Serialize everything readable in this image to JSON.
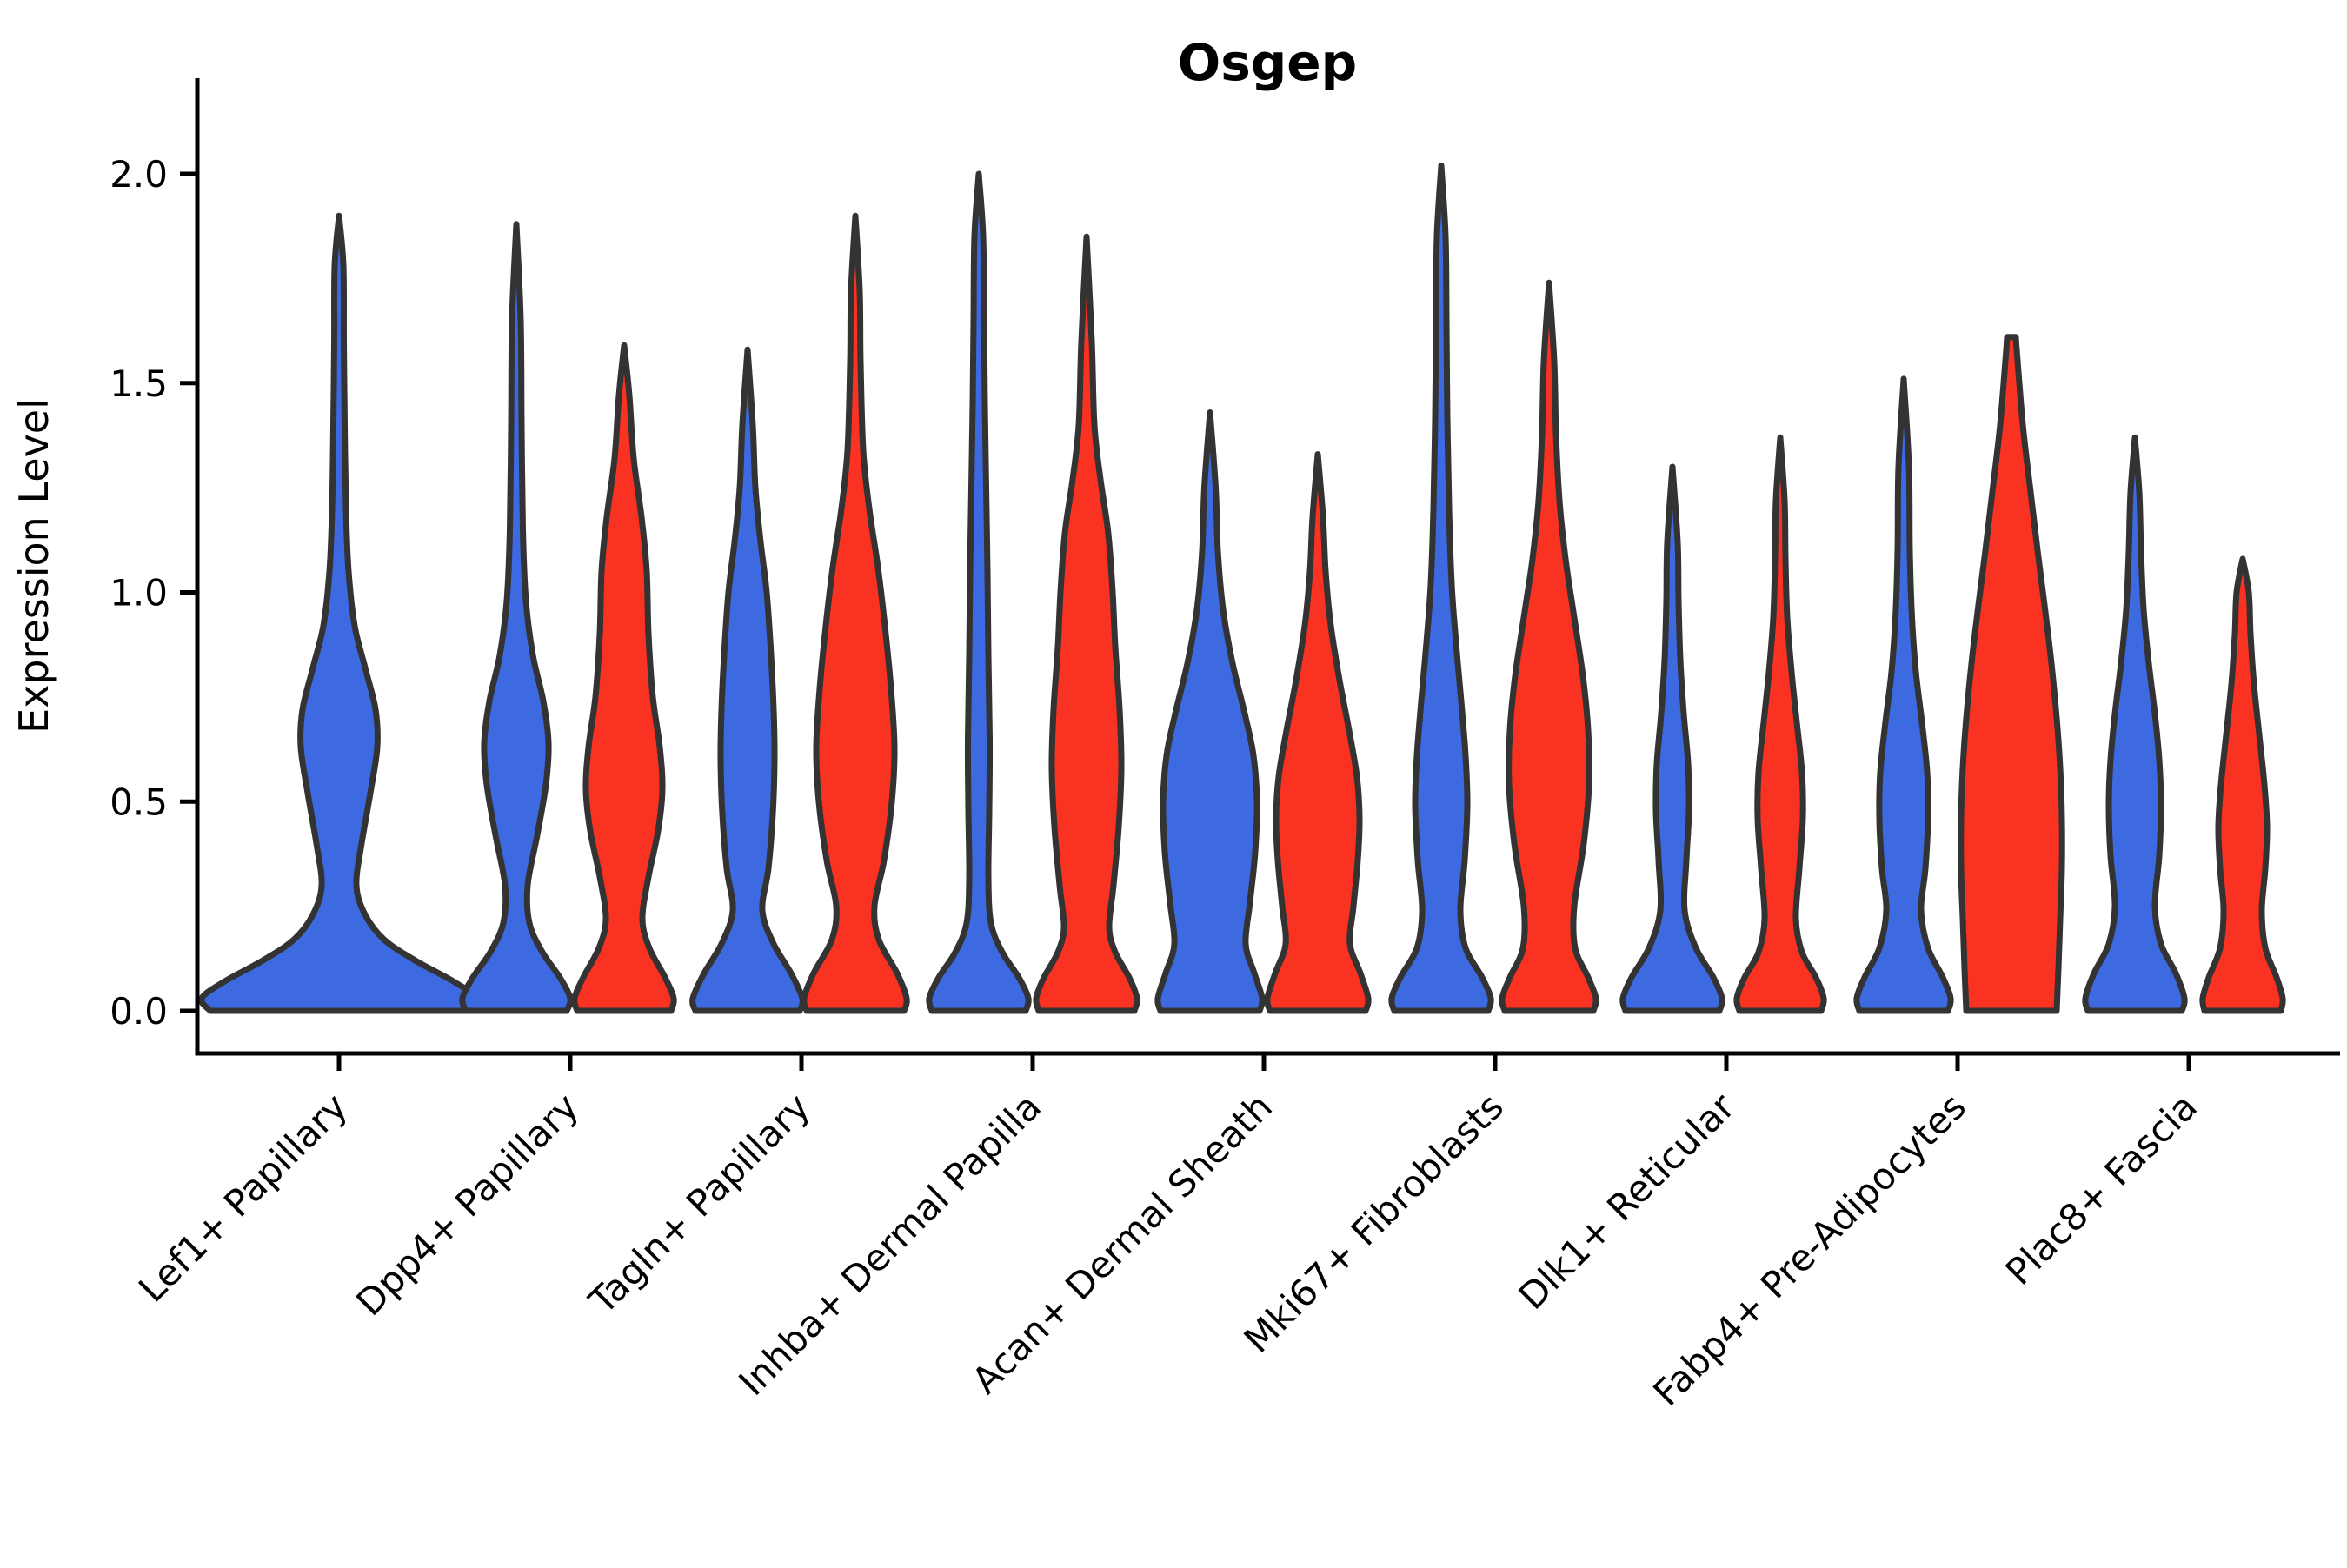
{
  "title": "Osgep",
  "chart_data": {
    "type": "violin",
    "title": "Osgep",
    "ylabel": "Expression Level",
    "xlabel": "",
    "ylim": [
      -0.1,
      2.16
    ],
    "yticks": [
      "0.0",
      "0.5",
      "1.0",
      "1.5",
      "2.0"
    ],
    "ytick_values": [
      0,
      0.5,
      1.0,
      1.5,
      2.0
    ],
    "grid": false,
    "legend_position": "none",
    "background_color": "#ffffff",
    "edge_color": "#333333",
    "axis_color": "#000000",
    "categories": [
      "Lef1+ Papillary",
      "Dpp4+ Papillary",
      "Tagln+ Papillary",
      "Inhba+ Dermal Papilla",
      "Acan+ Dermal Sheath",
      "Mki67+ Fibroblasts",
      "Dlk1+ Reticular",
      "Fabp4+ Pre-Adipocytes",
      "Plac8+ Fascia"
    ],
    "series": [
      {
        "name": "group-blue",
        "color": "#3E6AE1"
      },
      {
        "name": "group-red",
        "color": "#F93222"
      }
    ],
    "violins": [
      {
        "category_index": 0,
        "category": "Lef1+ Papillary",
        "series": 0,
        "position": "center",
        "max_expression": 1.9,
        "profile": [
          [
            0,
            148
          ],
          [
            0.03,
            158
          ],
          [
            0.07,
            132
          ],
          [
            0.12,
            88
          ],
          [
            0.17,
            52
          ],
          [
            0.23,
            30
          ],
          [
            0.3,
            20
          ],
          [
            0.4,
            26
          ],
          [
            0.52,
            36
          ],
          [
            0.63,
            44
          ],
          [
            0.72,
            42
          ],
          [
            0.82,
            30
          ],
          [
            0.92,
            18
          ],
          [
            1.05,
            11
          ],
          [
            1.2,
            8
          ],
          [
            1.4,
            6.5
          ],
          [
            1.6,
            5.5
          ],
          [
            1.78,
            5
          ],
          [
            1.9,
            0
          ]
        ]
      },
      {
        "category_index": 1,
        "category": "Dpp4+ Papillary",
        "series": 0,
        "position": "left",
        "max_expression": 1.88,
        "profile": [
          [
            0,
            58
          ],
          [
            0.03,
            62
          ],
          [
            0.08,
            50
          ],
          [
            0.14,
            30
          ],
          [
            0.21,
            15
          ],
          [
            0.3,
            13
          ],
          [
            0.42,
            24
          ],
          [
            0.54,
            34
          ],
          [
            0.64,
            37
          ],
          [
            0.74,
            31
          ],
          [
            0.85,
            19
          ],
          [
            0.98,
            11
          ],
          [
            1.15,
            7.5
          ],
          [
            1.4,
            6
          ],
          [
            1.65,
            5
          ],
          [
            1.88,
            0
          ]
        ]
      },
      {
        "category_index": 1,
        "category": "Dpp4+ Papillary",
        "series": 1,
        "position": "right",
        "max_expression": 1.59,
        "profile": [
          [
            0,
            54
          ],
          [
            0.03,
            57
          ],
          [
            0.08,
            47
          ],
          [
            0.15,
            29
          ],
          [
            0.22,
            21
          ],
          [
            0.32,
            28
          ],
          [
            0.43,
            39
          ],
          [
            0.53,
            44
          ],
          [
            0.63,
            41
          ],
          [
            0.75,
            33
          ],
          [
            0.9,
            28
          ],
          [
            1.05,
            26
          ],
          [
            1.18,
            20
          ],
          [
            1.32,
            11
          ],
          [
            1.47,
            6
          ],
          [
            1.59,
            0
          ]
        ]
      },
      {
        "category_index": 2,
        "category": "Tagln+ Papillary",
        "series": 0,
        "position": "left",
        "max_expression": 1.58,
        "profile": [
          [
            0,
            60
          ],
          [
            0.03,
            63
          ],
          [
            0.09,
            50
          ],
          [
            0.16,
            30
          ],
          [
            0.24,
            17
          ],
          [
            0.34,
            24
          ],
          [
            0.47,
            29
          ],
          [
            0.6,
            31
          ],
          [
            0.72,
            30
          ],
          [
            0.85,
            27
          ],
          [
            1.0,
            22
          ],
          [
            1.12,
            15
          ],
          [
            1.25,
            9
          ],
          [
            1.4,
            6
          ],
          [
            1.58,
            0
          ]
        ]
      },
      {
        "category_index": 2,
        "category": "Tagln+ Papillary",
        "series": 1,
        "position": "right",
        "max_expression": 1.9,
        "profile": [
          [
            0,
            56
          ],
          [
            0.03,
            59
          ],
          [
            0.09,
            48
          ],
          [
            0.17,
            27
          ],
          [
            0.25,
            22
          ],
          [
            0.36,
            33
          ],
          [
            0.5,
            42
          ],
          [
            0.63,
            45
          ],
          [
            0.77,
            41
          ],
          [
            0.92,
            34
          ],
          [
            1.06,
            26
          ],
          [
            1.2,
            16
          ],
          [
            1.34,
            9
          ],
          [
            1.55,
            6
          ],
          [
            1.72,
            5
          ],
          [
            1.9,
            0
          ]
        ]
      },
      {
        "category_index": 3,
        "category": "Inhba+ Dermal Papilla",
        "series": 0,
        "position": "left",
        "max_expression": 2.0,
        "profile": [
          [
            0,
            54
          ],
          [
            0.03,
            57
          ],
          [
            0.08,
            46
          ],
          [
            0.14,
            27
          ],
          [
            0.21,
            14
          ],
          [
            0.32,
            11
          ],
          [
            0.48,
            12
          ],
          [
            0.65,
            12.5
          ],
          [
            0.85,
            11
          ],
          [
            1.05,
            10
          ],
          [
            1.25,
            8.5
          ],
          [
            1.45,
            7
          ],
          [
            1.65,
            6
          ],
          [
            1.85,
            5
          ],
          [
            2.0,
            0
          ]
        ]
      },
      {
        "category_index": 3,
        "category": "Inhba+ Dermal Papilla",
        "series": 1,
        "position": "right",
        "max_expression": 1.85,
        "profile": [
          [
            0,
            55
          ],
          [
            0.03,
            58
          ],
          [
            0.08,
            49
          ],
          [
            0.14,
            33
          ],
          [
            0.2,
            26
          ],
          [
            0.3,
            31
          ],
          [
            0.44,
            37
          ],
          [
            0.58,
            40
          ],
          [
            0.72,
            38
          ],
          [
            0.87,
            33
          ],
          [
            1.0,
            30
          ],
          [
            1.14,
            25
          ],
          [
            1.27,
            16
          ],
          [
            1.4,
            9
          ],
          [
            1.6,
            6
          ],
          [
            1.85,
            0
          ]
        ]
      },
      {
        "category_index": 4,
        "category": "Acan+ Dermal Sheath",
        "series": 0,
        "position": "left",
        "max_expression": 1.43,
        "profile": [
          [
            0,
            57
          ],
          [
            0.03,
            60
          ],
          [
            0.09,
            51
          ],
          [
            0.16,
            41
          ],
          [
            0.26,
            46
          ],
          [
            0.38,
            52
          ],
          [
            0.5,
            54
          ],
          [
            0.61,
            50
          ],
          [
            0.71,
            40
          ],
          [
            0.83,
            26
          ],
          [
            0.96,
            15
          ],
          [
            1.1,
            9
          ],
          [
            1.25,
            6.5
          ],
          [
            1.43,
            0
          ]
        ]
      },
      {
        "category_index": 4,
        "category": "Acan+ Dermal Sheath",
        "series": 1,
        "position": "right",
        "max_expression": 1.33,
        "profile": [
          [
            0,
            55
          ],
          [
            0.03,
            58
          ],
          [
            0.09,
            49
          ],
          [
            0.16,
            37
          ],
          [
            0.25,
            41
          ],
          [
            0.36,
            46
          ],
          [
            0.46,
            48
          ],
          [
            0.56,
            45
          ],
          [
            0.67,
            36
          ],
          [
            0.79,
            25
          ],
          [
            0.92,
            15
          ],
          [
            1.05,
            9
          ],
          [
            1.18,
            6
          ],
          [
            1.33,
            0
          ]
        ]
      },
      {
        "category_index": 5,
        "category": "Mki67+ Fibroblasts",
        "series": 0,
        "position": "left",
        "max_expression": 2.02,
        "profile": [
          [
            0,
            54
          ],
          [
            0.03,
            57
          ],
          [
            0.08,
            47
          ],
          [
            0.15,
            28
          ],
          [
            0.24,
            22
          ],
          [
            0.36,
            27
          ],
          [
            0.49,
            30
          ],
          [
            0.61,
            28
          ],
          [
            0.74,
            23
          ],
          [
            0.88,
            17
          ],
          [
            1.02,
            12
          ],
          [
            1.2,
            9
          ],
          [
            1.42,
            7
          ],
          [
            1.65,
            6
          ],
          [
            1.85,
            5
          ],
          [
            2.02,
            0
          ]
        ]
      },
      {
        "category_index": 5,
        "category": "Mki67+ Fibroblasts",
        "series": 1,
        "position": "right",
        "max_expression": 1.74,
        "profile": [
          [
            0,
            51
          ],
          [
            0.03,
            54
          ],
          [
            0.08,
            45
          ],
          [
            0.15,
            30
          ],
          [
            0.25,
            29
          ],
          [
            0.4,
            40
          ],
          [
            0.54,
            46
          ],
          [
            0.67,
            45
          ],
          [
            0.8,
            39
          ],
          [
            0.94,
            29
          ],
          [
            1.08,
            19
          ],
          [
            1.22,
            12
          ],
          [
            1.38,
            8
          ],
          [
            1.55,
            6
          ],
          [
            1.74,
            0
          ]
        ]
      },
      {
        "category_index": 6,
        "category": "Dlk1+ Reticular",
        "series": 0,
        "position": "left",
        "max_expression": 1.3,
        "profile": [
          [
            0,
            54
          ],
          [
            0.03,
            57
          ],
          [
            0.08,
            47
          ],
          [
            0.15,
            27
          ],
          [
            0.24,
            14
          ],
          [
            0.36,
            16
          ],
          [
            0.48,
            19
          ],
          [
            0.59,
            18
          ],
          [
            0.71,
            13
          ],
          [
            0.84,
            9
          ],
          [
            0.98,
            7
          ],
          [
            1.12,
            6
          ],
          [
            1.3,
            0
          ]
        ]
      },
      {
        "category_index": 6,
        "category": "Dlk1+ Reticular",
        "series": 1,
        "position": "right",
        "max_expression": 1.37,
        "profile": [
          [
            0,
            47
          ],
          [
            0.03,
            50
          ],
          [
            0.08,
            41
          ],
          [
            0.14,
            25
          ],
          [
            0.22,
            18
          ],
          [
            0.34,
            22
          ],
          [
            0.46,
            26
          ],
          [
            0.57,
            25
          ],
          [
            0.69,
            19
          ],
          [
            0.81,
            13
          ],
          [
            0.94,
            8
          ],
          [
            1.08,
            6
          ],
          [
            1.22,
            5
          ],
          [
            1.37,
            0
          ]
        ]
      },
      {
        "category_index": 7,
        "category": "Fabp4+ Pre-Adipocytes",
        "series": 0,
        "position": "left",
        "max_expression": 1.51,
        "profile": [
          [
            0,
            51
          ],
          [
            0.03,
            54
          ],
          [
            0.08,
            45
          ],
          [
            0.15,
            28
          ],
          [
            0.24,
            20
          ],
          [
            0.34,
            25
          ],
          [
            0.46,
            28
          ],
          [
            0.57,
            27
          ],
          [
            0.69,
            21
          ],
          [
            0.81,
            14
          ],
          [
            0.94,
            9.5
          ],
          [
            1.1,
            7
          ],
          [
            1.3,
            6
          ],
          [
            1.51,
            0
          ]
        ]
      },
      {
        "category_index": 7,
        "category": "Fabp4+ Pre-Adipocytes",
        "series": 1,
        "position": "right",
        "max_expression": 1.61,
        "profile": [
          [
            0,
            52
          ],
          [
            0.1,
            54
          ],
          [
            0.22,
            56
          ],
          [
            0.34,
            58
          ],
          [
            0.46,
            58
          ],
          [
            0.58,
            56
          ],
          [
            0.7,
            52
          ],
          [
            0.83,
            46
          ],
          [
            0.97,
            38
          ],
          [
            1.1,
            30
          ],
          [
            1.24,
            22
          ],
          [
            1.38,
            14
          ],
          [
            1.5,
            9
          ],
          [
            1.58,
            6
          ],
          [
            1.61,
            5
          ]
        ]
      },
      {
        "category_index": 8,
        "category": "Plac8+ Fascia",
        "series": 0,
        "position": "left",
        "max_expression": 1.37,
        "profile": [
          [
            0,
            54
          ],
          [
            0.03,
            57
          ],
          [
            0.09,
            47
          ],
          [
            0.16,
            30
          ],
          [
            0.25,
            23
          ],
          [
            0.37,
            28
          ],
          [
            0.49,
            30
          ],
          [
            0.6,
            28
          ],
          [
            0.71,
            23
          ],
          [
            0.83,
            16
          ],
          [
            0.96,
            10
          ],
          [
            1.1,
            7
          ],
          [
            1.24,
            5
          ],
          [
            1.37,
            0
          ]
        ]
      },
      {
        "category_index": 8,
        "category": "Plac8+ Fascia",
        "series": 1,
        "position": "right",
        "max_expression": 1.08,
        "profile": [
          [
            0,
            44
          ],
          [
            0.03,
            46
          ],
          [
            0.08,
            39
          ],
          [
            0.15,
            26
          ],
          [
            0.24,
            22
          ],
          [
            0.34,
            26
          ],
          [
            0.44,
            28
          ],
          [
            0.54,
            25
          ],
          [
            0.66,
            19
          ],
          [
            0.78,
            13
          ],
          [
            0.9,
            9
          ],
          [
            1.0,
            7
          ],
          [
            1.08,
            0
          ]
        ]
      }
    ]
  }
}
